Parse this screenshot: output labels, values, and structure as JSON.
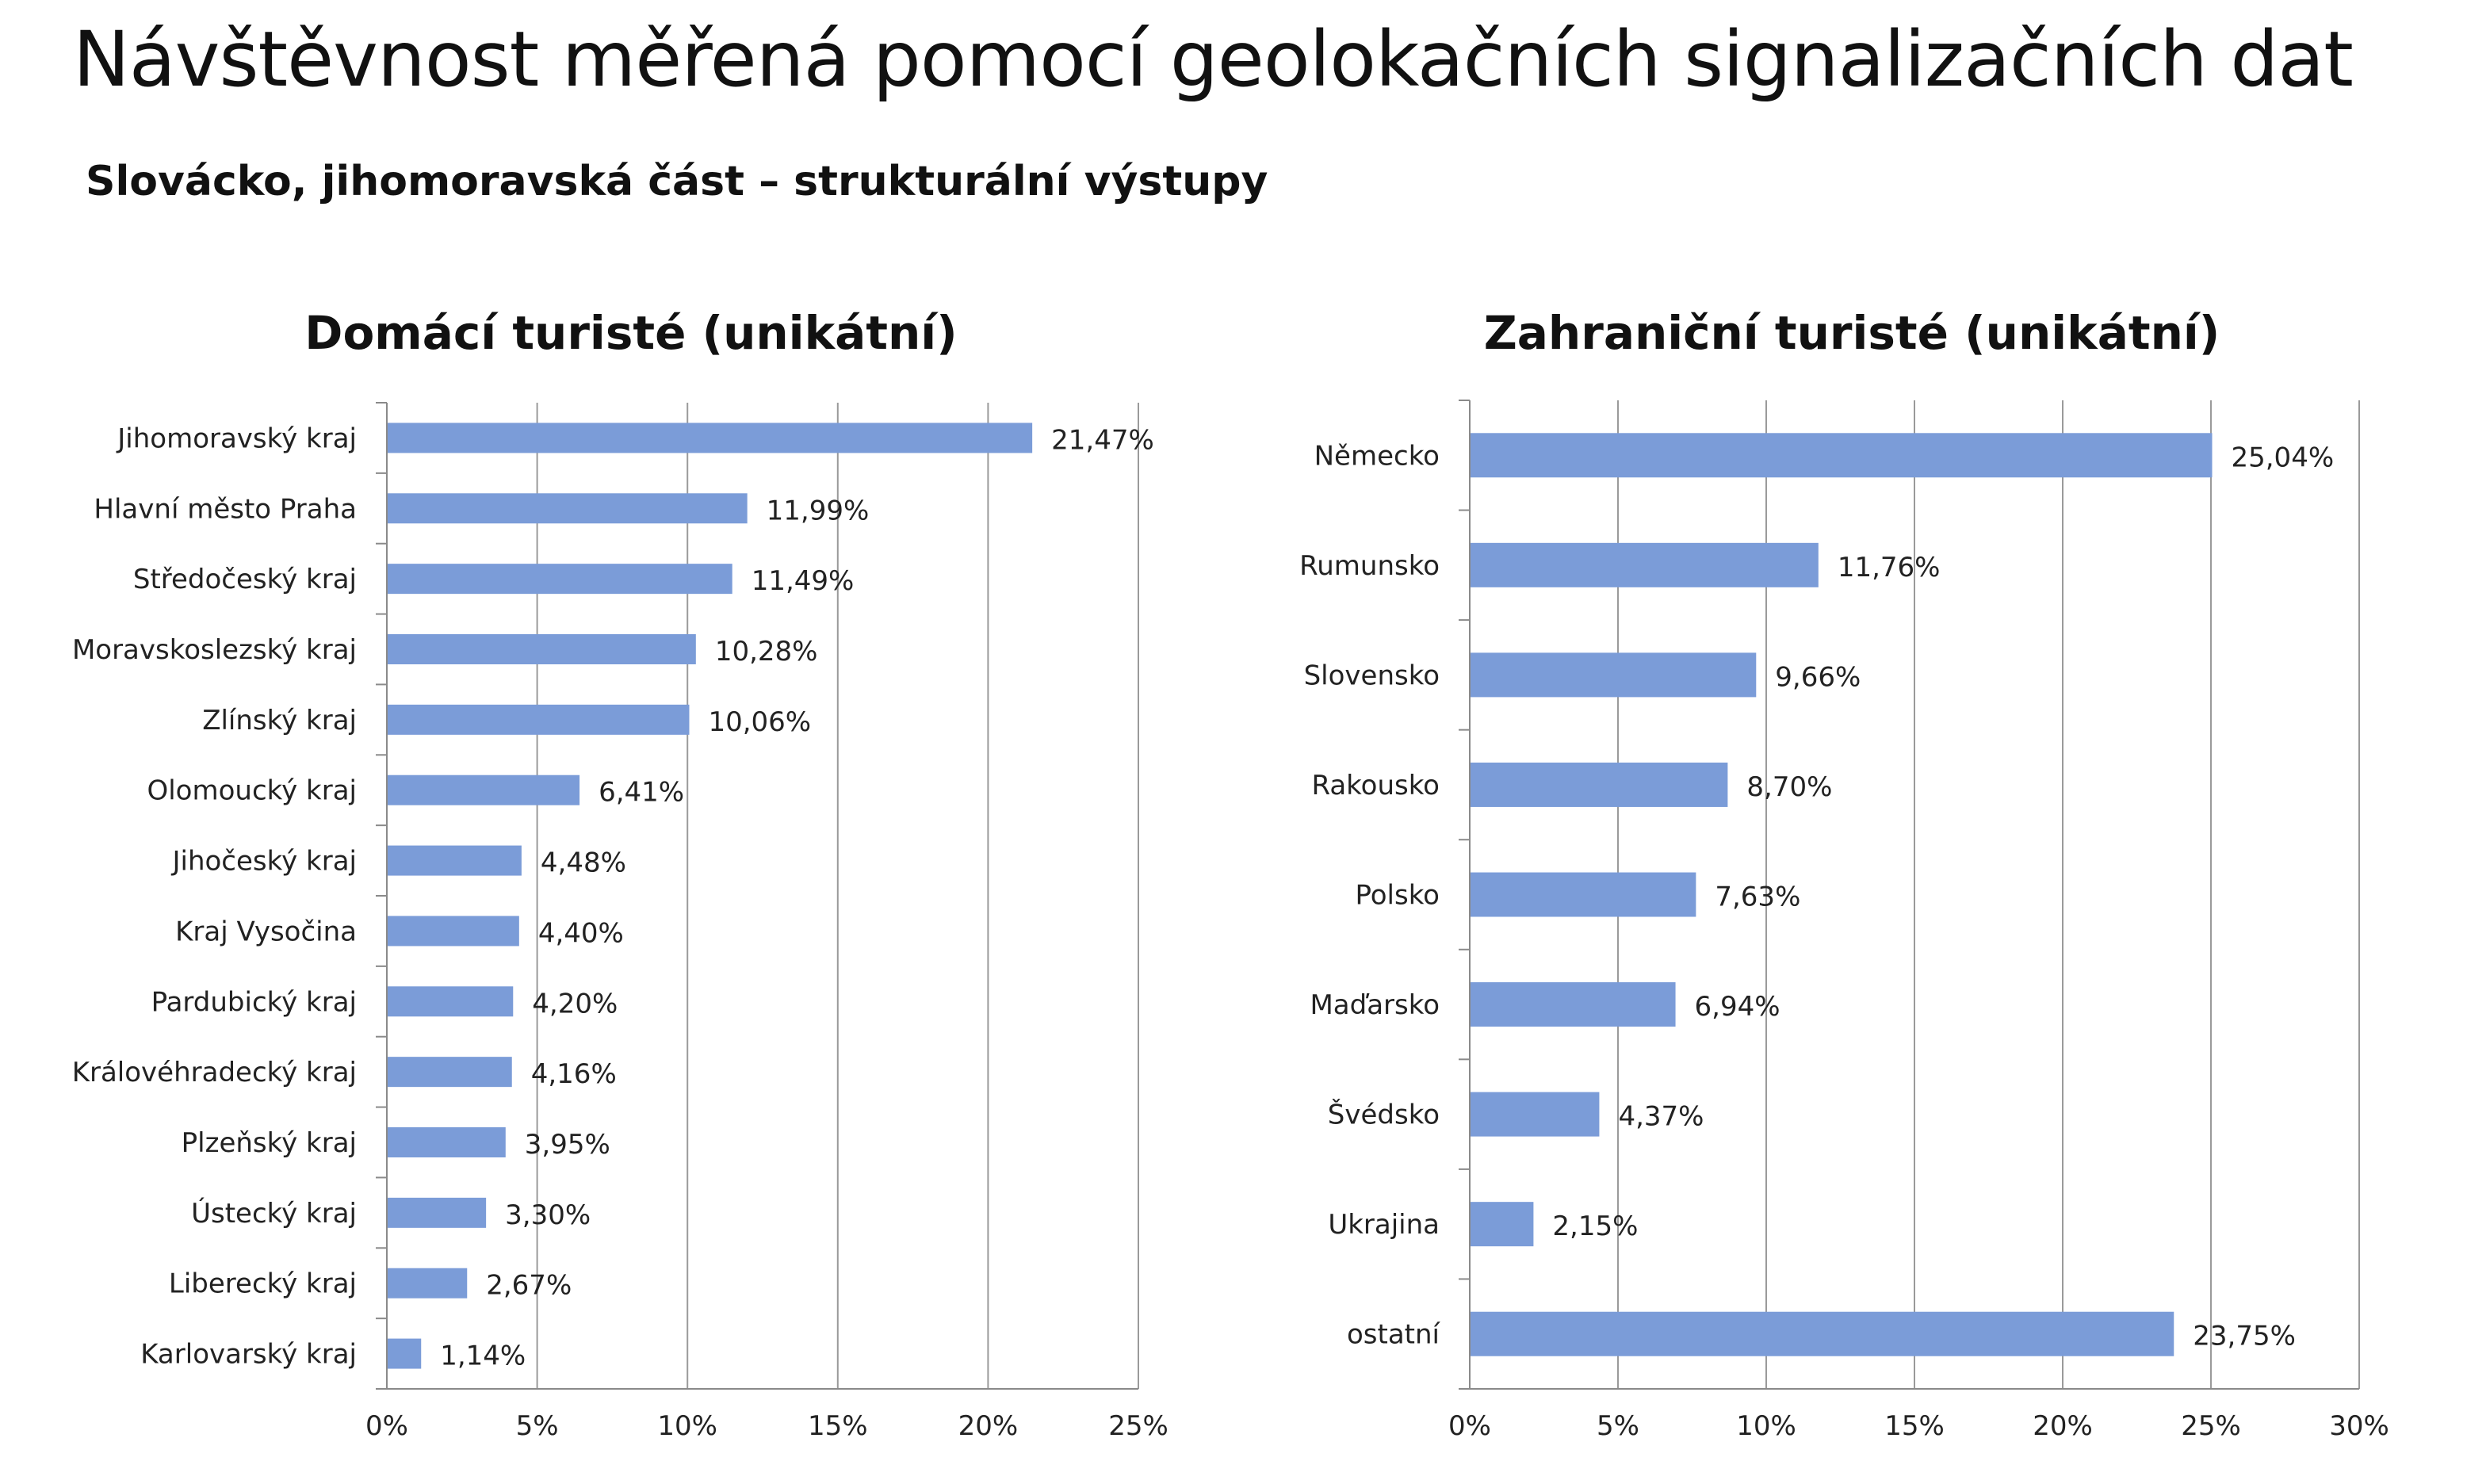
{
  "header": {
    "title": "Návštěvnost měřená pomocí geolokačních signalizačních dat",
    "subtitle": "Slovácko, jihomoravská část – strukturální výstupy"
  },
  "chart_data": [
    {
      "type": "bar",
      "orientation": "horizontal",
      "title": "Domácí turisté (unikátní)",
      "categories": [
        "Jihomoravský kraj",
        "Hlavní město Praha",
        "Středočeský kraj",
        "Moravskoslezský kraj",
        "Zlínský kraj",
        "Olomoucký kraj",
        "Jihočeský kraj",
        "Kraj Vysočina",
        "Pardubický kraj",
        "Královéhradecký kraj",
        "Plzeňský kraj",
        "Ústecký kraj",
        "Liberecký kraj",
        "Karlovarský kraj"
      ],
      "values": [
        21.47,
        11.99,
        11.49,
        10.28,
        10.06,
        6.41,
        4.48,
        4.4,
        4.2,
        4.16,
        3.95,
        3.3,
        2.67,
        1.14
      ],
      "labels": [
        "21,47%",
        "11,99%",
        "11,49%",
        "10,28%",
        "10,06%",
        "6,41%",
        "4,48%",
        "4,40%",
        "4,20%",
        "4,16%",
        "3,95%",
        "3,30%",
        "2,67%",
        "1,14%"
      ],
      "xlim": [
        0,
        25
      ],
      "xticks": [
        0,
        5,
        10,
        15,
        20,
        25
      ],
      "xtick_labels": [
        "0%",
        "5%",
        "10%",
        "15%",
        "20%",
        "25%"
      ],
      "grid": true,
      "bar_color": "#7B9CD8"
    },
    {
      "type": "bar",
      "orientation": "horizontal",
      "title": "Zahraniční turisté (unikátní)",
      "categories": [
        "Německo",
        "Rumunsko",
        "Slovensko",
        "Rakousko",
        "Polsko",
        "Maďarsko",
        "Švédsko",
        "Ukrajina",
        "ostatní"
      ],
      "values": [
        25.04,
        11.76,
        9.66,
        8.7,
        7.63,
        6.94,
        4.37,
        2.15,
        23.75
      ],
      "labels": [
        "25,04%",
        "11,76%",
        "9,66%",
        "8,70%",
        "7,63%",
        "6,94%",
        "4,37%",
        "2,15%",
        "23,75%"
      ],
      "xlim": [
        0,
        30
      ],
      "xticks": [
        0,
        5,
        10,
        15,
        20,
        25,
        30
      ],
      "xtick_labels": [
        "0%",
        "5%",
        "10%",
        "15%",
        "20%",
        "25%",
        "30%"
      ],
      "grid": true,
      "bar_color": "#7B9CD8"
    }
  ]
}
